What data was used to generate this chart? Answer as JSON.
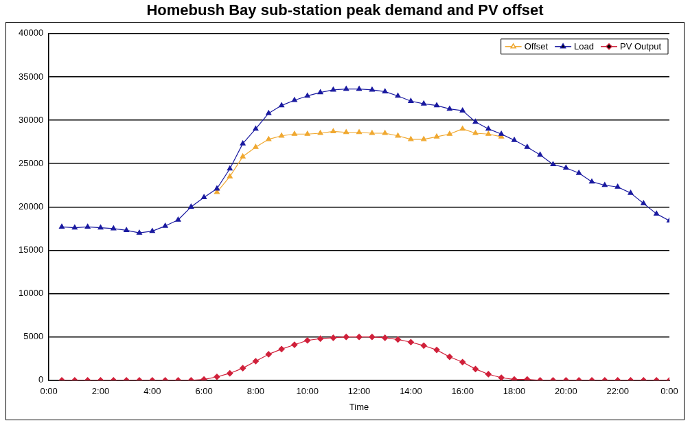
{
  "chart_data": {
    "type": "line",
    "title": "Homebush Bay sub-station peak demand and PV offset",
    "xlabel": "Time",
    "x": [
      0.5,
      1,
      1.5,
      2,
      2.5,
      3,
      3.5,
      4,
      4.5,
      5,
      5.5,
      6,
      6.5,
      7,
      7.5,
      8,
      8.5,
      9,
      9.5,
      10,
      10.5,
      11,
      11.5,
      12,
      12.5,
      13,
      13.5,
      14,
      14.5,
      15,
      15.5,
      16,
      16.5,
      17,
      17.5,
      18,
      18.5,
      19,
      19.5,
      20,
      20.5,
      21,
      21.5,
      22,
      22.5,
      23,
      23.5,
      24
    ],
    "series": [
      {
        "name": "Offset",
        "color": "#f0a830",
        "marker": "triangle",
        "values": [
          null,
          null,
          null,
          null,
          null,
          null,
          null,
          null,
          null,
          null,
          null,
          null,
          21700,
          23500,
          25800,
          26900,
          27800,
          28200,
          28400,
          28400,
          28500,
          28700,
          28600,
          28600,
          28500,
          28500,
          28200,
          27800,
          27800,
          28100,
          28400,
          29000,
          28500,
          28400,
          28100,
          null,
          null,
          null,
          null,
          null,
          null,
          null,
          null,
          null,
          null,
          null,
          null,
          null
        ]
      },
      {
        "name": "Load",
        "color": "#1a1aa0",
        "marker": "triangle",
        "values": [
          17700,
          17600,
          17700,
          17600,
          17500,
          17300,
          17000,
          17200,
          17800,
          18500,
          20000,
          21100,
          22100,
          24400,
          27300,
          29000,
          30800,
          31700,
          32300,
          32800,
          33200,
          33500,
          33600,
          33600,
          33500,
          33300,
          32800,
          32200,
          31900,
          31700,
          31300,
          31100,
          29800,
          29000,
          28400,
          27700,
          26900,
          26000,
          24900,
          24500,
          23900,
          22900,
          22500,
          22300,
          21600,
          20400,
          19200,
          18400
        ]
      },
      {
        "name": "PV Output",
        "color": "#d0203a",
        "marker": "diamond",
        "values": [
          0,
          0,
          0,
          0,
          0,
          0,
          0,
          0,
          0,
          0,
          0,
          100,
          400,
          800,
          1400,
          2200,
          3000,
          3600,
          4100,
          4600,
          4800,
          4900,
          5000,
          5000,
          5000,
          4900,
          4700,
          4400,
          4000,
          3500,
          2700,
          2100,
          1300,
          700,
          300,
          100,
          100,
          0,
          0,
          0,
          0,
          0,
          0,
          0,
          0,
          0,
          0,
          0
        ]
      }
    ],
    "xlim": [
      0,
      24
    ],
    "xticks": [
      {
        "value": 0,
        "label": "0:00"
      },
      {
        "value": 2,
        "label": "2:00"
      },
      {
        "value": 4,
        "label": "4:00"
      },
      {
        "value": 6,
        "label": "6:00"
      },
      {
        "value": 8,
        "label": "8:00"
      },
      {
        "value": 10,
        "label": "10:00"
      },
      {
        "value": 12,
        "label": "12:00"
      },
      {
        "value": 14,
        "label": "14:00"
      },
      {
        "value": 16,
        "label": "16:00"
      },
      {
        "value": 18,
        "label": "18:00"
      },
      {
        "value": 20,
        "label": "20:00"
      },
      {
        "value": 22,
        "label": "22:00"
      },
      {
        "value": 24,
        "label": "0:00"
      }
    ],
    "ylim": [
      0,
      40000
    ],
    "yticks": [
      0,
      5000,
      10000,
      15000,
      20000,
      25000,
      30000,
      35000,
      40000
    ],
    "grid": "y",
    "legend": "top right",
    "line_style": "solid"
  }
}
